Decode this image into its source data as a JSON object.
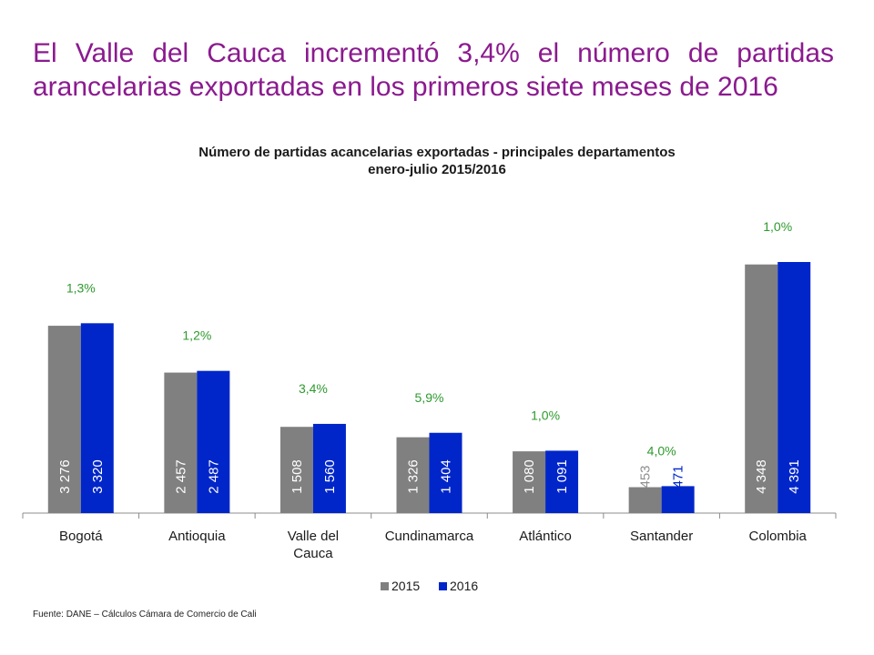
{
  "headline": "El Valle del Cauca incrementó 3,4% el número de partidas arancelarias exportadas en los primeros siete meses de 2016",
  "source": "Fuente: DANE – Cálculos Cámara de Comercio de Cali",
  "colors": {
    "headline": "#8b1a8f",
    "series2015": "#808080",
    "series2016": "#0026c9",
    "change_label": "#2e9a2e"
  },
  "chart_data": {
    "type": "bar",
    "title": "Número de partidas acancelarias exportadas - principales departamentos",
    "subtitle": "enero-julio 2015/2016",
    "categories": [
      "Bogotá",
      "Antioquia",
      "Valle del Cauca",
      "Cundinamarca",
      "Atlántico",
      "Santander",
      "Colombia"
    ],
    "series": [
      {
        "name": "2015",
        "values": [
          3276,
          2457,
          1508,
          1326,
          1080,
          453,
          4348
        ],
        "labels": [
          "3 276",
          "2 457",
          "1 508",
          "1 326",
          "1 080",
          "453",
          "4 348"
        ]
      },
      {
        "name": "2016",
        "values": [
          3320,
          2487,
          1560,
          1404,
          1091,
          471,
          4391
        ],
        "labels": [
          "3 320",
          "2 487",
          "1 560",
          "1 404",
          "1 091",
          "471",
          "4 391"
        ]
      }
    ],
    "change_labels": [
      "1,3%",
      "1,2%",
      "3,4%",
      "5,9%",
      "1,0%",
      "4,0%",
      "1,0%"
    ],
    "ylim": [
      0,
      4800
    ],
    "legend_position": "bottom",
    "grid": false
  }
}
